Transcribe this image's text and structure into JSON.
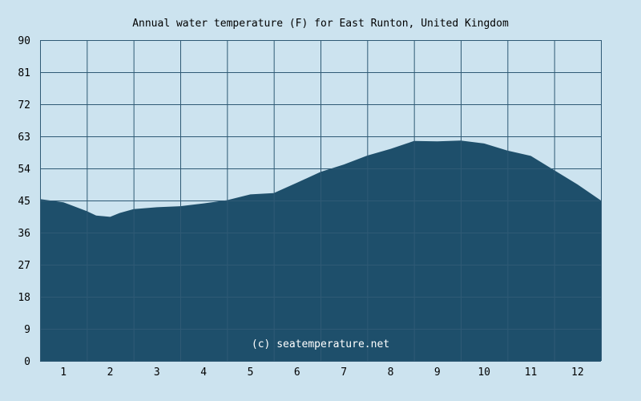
{
  "chart_data": {
    "type": "area",
    "title": "Annual water temperature (F) for East Runton, United Kingdom",
    "xlabel": "",
    "ylabel": "",
    "categories": [
      "1",
      "2",
      "3",
      "4",
      "5",
      "6",
      "7",
      "8",
      "9",
      "10",
      "11",
      "12"
    ],
    "ylim": [
      0,
      90
    ],
    "yticks": [
      "0",
      "9",
      "18",
      "27",
      "36",
      "45",
      "54",
      "63",
      "72",
      "81",
      "90"
    ],
    "grid": true,
    "watermark": "(c) seatemperature.net",
    "x": [
      0.0,
      0.5,
      1.0,
      1.2,
      1.5,
      1.7,
      2.0,
      2.5,
      3.0,
      3.5,
      4.0,
      4.5,
      5.0,
      5.5,
      6.0,
      6.5,
      7.0,
      7.5,
      8.0,
      8.5,
      9.0,
      9.5,
      10.0,
      10.5,
      11.0,
      11.5,
      12.0
    ],
    "y": [
      45.4,
      44.5,
      42.0,
      40.8,
      40.4,
      41.5,
      42.6,
      43.1,
      43.4,
      44.2,
      45.1,
      46.7,
      47.1,
      50.0,
      53.0,
      55.1,
      57.6,
      59.5,
      61.7,
      61.6,
      61.8,
      61.0,
      59.0,
      57.5,
      53.5,
      49.5,
      45.0
    ],
    "colors": {
      "fill": "#1e4f6b",
      "background": "#cce3ef",
      "grid": "#2f5a75"
    }
  }
}
